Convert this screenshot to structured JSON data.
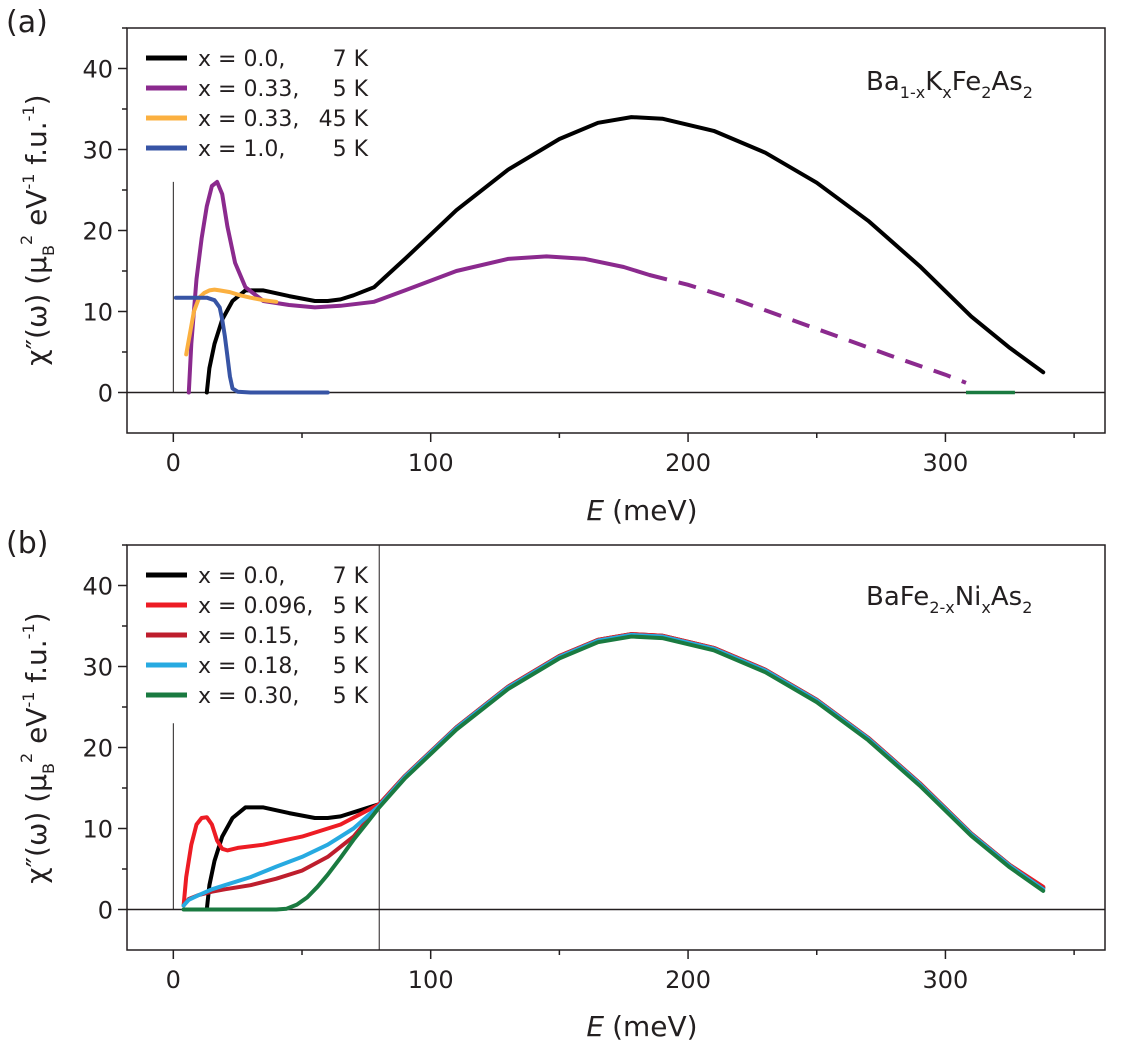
{
  "figure": {
    "panels": [
      "a",
      "b"
    ]
  },
  "chart_data": [
    {
      "panel_label": "(a)",
      "type": "line",
      "compound": {
        "parts": [
          "Ba",
          "1-x",
          "K",
          "x",
          "Fe",
          "2",
          "As",
          "2"
        ]
      },
      "xlabel": {
        "symbol": "E",
        "unit": "(meV)"
      },
      "ylabel": {
        "prefix": "χ″(ω) (μ",
        "sub": "B",
        "mid1": "",
        "sup1": "2",
        "mid2": " eV",
        "sup2": "-1",
        "suffix": " f.u.",
        "sup3": "-1",
        "close": ")"
      },
      "xlim": [
        -18,
        362
      ],
      "ylim": [
        -5,
        45
      ],
      "xticks": [
        0,
        100,
        200,
        300
      ],
      "yticks": [
        0,
        10,
        20,
        30,
        40
      ],
      "vline_x": 0,
      "vline_ytop": 26,
      "series": [
        {
          "name": "x = 0.0,",
          "temp": "7 K",
          "color": "#000000",
          "x": [
            13,
            14,
            16,
            19,
            23,
            28,
            35,
            45,
            55,
            60,
            65,
            70,
            78,
            90,
            110,
            130,
            150,
            165,
            178,
            190,
            210,
            230,
            250,
            270,
            290,
            310,
            325,
            338
          ],
          "y": [
            0,
            3,
            6,
            9,
            11.3,
            12.6,
            12.6,
            11.9,
            11.3,
            11.3,
            11.5,
            12,
            13,
            16.5,
            22.5,
            27.5,
            31.3,
            33.3,
            34,
            33.8,
            32.3,
            29.6,
            25.9,
            21.2,
            15.6,
            9.4,
            5.5,
            2.5
          ]
        },
        {
          "name": "x = 0.33,",
          "temp": "5 K",
          "color": "#8b2a8e",
          "x": [
            6,
            7,
            9,
            11,
            13,
            15,
            17,
            19,
            21,
            24,
            28,
            35,
            45,
            55,
            65,
            78,
            90,
            110,
            130,
            145,
            160,
            175,
            185
          ],
          "y": [
            0,
            6,
            14,
            19,
            23,
            25.5,
            26,
            24.5,
            20.5,
            16,
            13,
            11.3,
            10.8,
            10.5,
            10.7,
            11.2,
            12.6,
            15,
            16.5,
            16.8,
            16.5,
            15.5,
            14.5
          ],
          "dashed_x": [
            185,
            200,
            220,
            240,
            260,
            280,
            300,
            308
          ],
          "dashed_y": [
            14.5,
            13.3,
            11.3,
            9,
            6.7,
            4.4,
            2.2,
            1.2
          ]
        },
        {
          "name": "x = 0.33,",
          "temp": "45 K",
          "color": "#fbb040",
          "x": [
            5,
            6,
            8,
            10,
            12,
            14,
            16,
            18,
            22,
            26,
            30,
            35,
            40
          ],
          "y": [
            4.7,
            6.5,
            10,
            11.7,
            12.3,
            12.6,
            12.7,
            12.6,
            12.4,
            12,
            11.7,
            11.4,
            11.2
          ]
        },
        {
          "name": "x = 1.0,",
          "temp": "5 K",
          "color": "#3754a5",
          "x": [
            1,
            5,
            9,
            13,
            16,
            18,
            19,
            20,
            21,
            22,
            23,
            25,
            30,
            40,
            50,
            60
          ],
          "y": [
            11.7,
            11.7,
            11.7,
            11.7,
            11.4,
            10.5,
            9,
            7,
            4.5,
            2,
            0.5,
            0.1,
            0,
            0,
            0,
            0
          ]
        }
      ],
      "extra_segments": [
        {
          "color": "#1a7a40",
          "x": [
            308,
            327
          ],
          "y": [
            0,
            0
          ]
        }
      ]
    },
    {
      "panel_label": "(b)",
      "type": "line",
      "compound": {
        "parts": [
          "BaFe",
          "2-x",
          "Ni",
          "x",
          "As",
          "2"
        ]
      },
      "xlabel": {
        "symbol": "E",
        "unit": "(meV)"
      },
      "ylabel": {
        "prefix": "χ″(ω) (μ",
        "sub": "B",
        "mid1": "",
        "sup1": "2",
        "mid2": " eV",
        "sup2": "-1",
        "suffix": " f.u.",
        "sup3": "-1",
        "close": ")"
      },
      "xlim": [
        -18,
        362
      ],
      "ylim": [
        -5,
        45
      ],
      "xticks": [
        0,
        100,
        200,
        300
      ],
      "yticks": [
        0,
        10,
        20,
        30,
        40
      ],
      "vline_x": 0,
      "vline_ytop": 23,
      "vline2_x": 80,
      "series": [
        {
          "name": "x = 0.0,",
          "temp": "7 K",
          "color": "#000000",
          "x": [
            13,
            14,
            16,
            19,
            23,
            28,
            35,
            45,
            55,
            60,
            65,
            70,
            80,
            90,
            110,
            130,
            150,
            165,
            178,
            190,
            210,
            230,
            250,
            270,
            290,
            310,
            325,
            338
          ],
          "y": [
            0,
            3,
            6,
            9,
            11.3,
            12.6,
            12.6,
            11.9,
            11.3,
            11.3,
            11.5,
            12,
            13,
            16.5,
            22.5,
            27.5,
            31.3,
            33.3,
            34,
            33.8,
            32.3,
            29.6,
            25.9,
            21.2,
            15.6,
            9.4,
            5.5,
            2.7
          ]
        },
        {
          "name": "x = 0.096,",
          "temp": "5 K",
          "color": "#ed1c24",
          "x": [
            4,
            5,
            7,
            9,
            11,
            13,
            15,
            17,
            19,
            21,
            25,
            35,
            50,
            65,
            80,
            90,
            110,
            130,
            150,
            165,
            178,
            190,
            210,
            230,
            250,
            270,
            290,
            310,
            325,
            338
          ],
          "y": [
            0.5,
            4,
            8,
            10.5,
            11.3,
            11.4,
            10.5,
            8.5,
            7.5,
            7.3,
            7.6,
            8,
            9,
            10.5,
            13,
            16.5,
            22.5,
            27.5,
            31.3,
            33.3,
            34,
            33.8,
            32.3,
            29.6,
            25.9,
            21.2,
            15.6,
            9.4,
            5.5,
            2.8
          ]
        },
        {
          "name": "x = 0.15,",
          "temp": "5 K",
          "color": "#be1e2d",
          "x": [
            4,
            6,
            10,
            15,
            20,
            30,
            40,
            50,
            60,
            70,
            80,
            90,
            110,
            130,
            150,
            165,
            178,
            190,
            210,
            230,
            250,
            270,
            290,
            310,
            325,
            338
          ],
          "y": [
            0.5,
            1.3,
            1.8,
            2.2,
            2.5,
            3,
            3.8,
            4.8,
            6.5,
            9,
            12.8,
            16.4,
            22.4,
            27.4,
            31.2,
            33.2,
            33.9,
            33.7,
            32.2,
            29.5,
            25.8,
            21.1,
            15.5,
            9.3,
            5.4,
            2.6
          ]
        },
        {
          "name": "x = 0.18,",
          "temp": "5 K",
          "color": "#27aae1",
          "x": [
            4,
            6,
            10,
            15,
            20,
            30,
            40,
            50,
            60,
            70,
            80,
            90,
            110,
            130,
            150,
            165,
            178,
            190,
            210,
            230,
            250,
            270,
            290,
            310,
            325,
            338
          ],
          "y": [
            0.5,
            1.2,
            1.8,
            2.5,
            3,
            4,
            5.3,
            6.5,
            8,
            10,
            12.8,
            16.4,
            22.4,
            27.4,
            31.2,
            33.2,
            33.9,
            33.7,
            32.2,
            29.5,
            25.8,
            21.1,
            15.5,
            9.3,
            5.4,
            2.5
          ]
        },
        {
          "name": "x = 0.30,",
          "temp": "5 K",
          "color": "#1a7a40",
          "x": [
            4,
            10,
            20,
            30,
            40,
            44,
            48,
            52,
            56,
            60,
            65,
            70,
            75,
            80,
            90,
            110,
            130,
            150,
            165,
            178,
            190,
            210,
            230,
            250,
            270,
            290,
            310,
            325,
            338
          ],
          "y": [
            0,
            0,
            0,
            0,
            0,
            0.1,
            0.6,
            1.5,
            2.8,
            4.3,
            6.4,
            8.6,
            10.6,
            12.6,
            16.2,
            22.2,
            27.2,
            31,
            33,
            33.7,
            33.5,
            32,
            29.3,
            25.6,
            20.9,
            15.3,
            9.1,
            5.2,
            2.3
          ]
        }
      ]
    }
  ]
}
